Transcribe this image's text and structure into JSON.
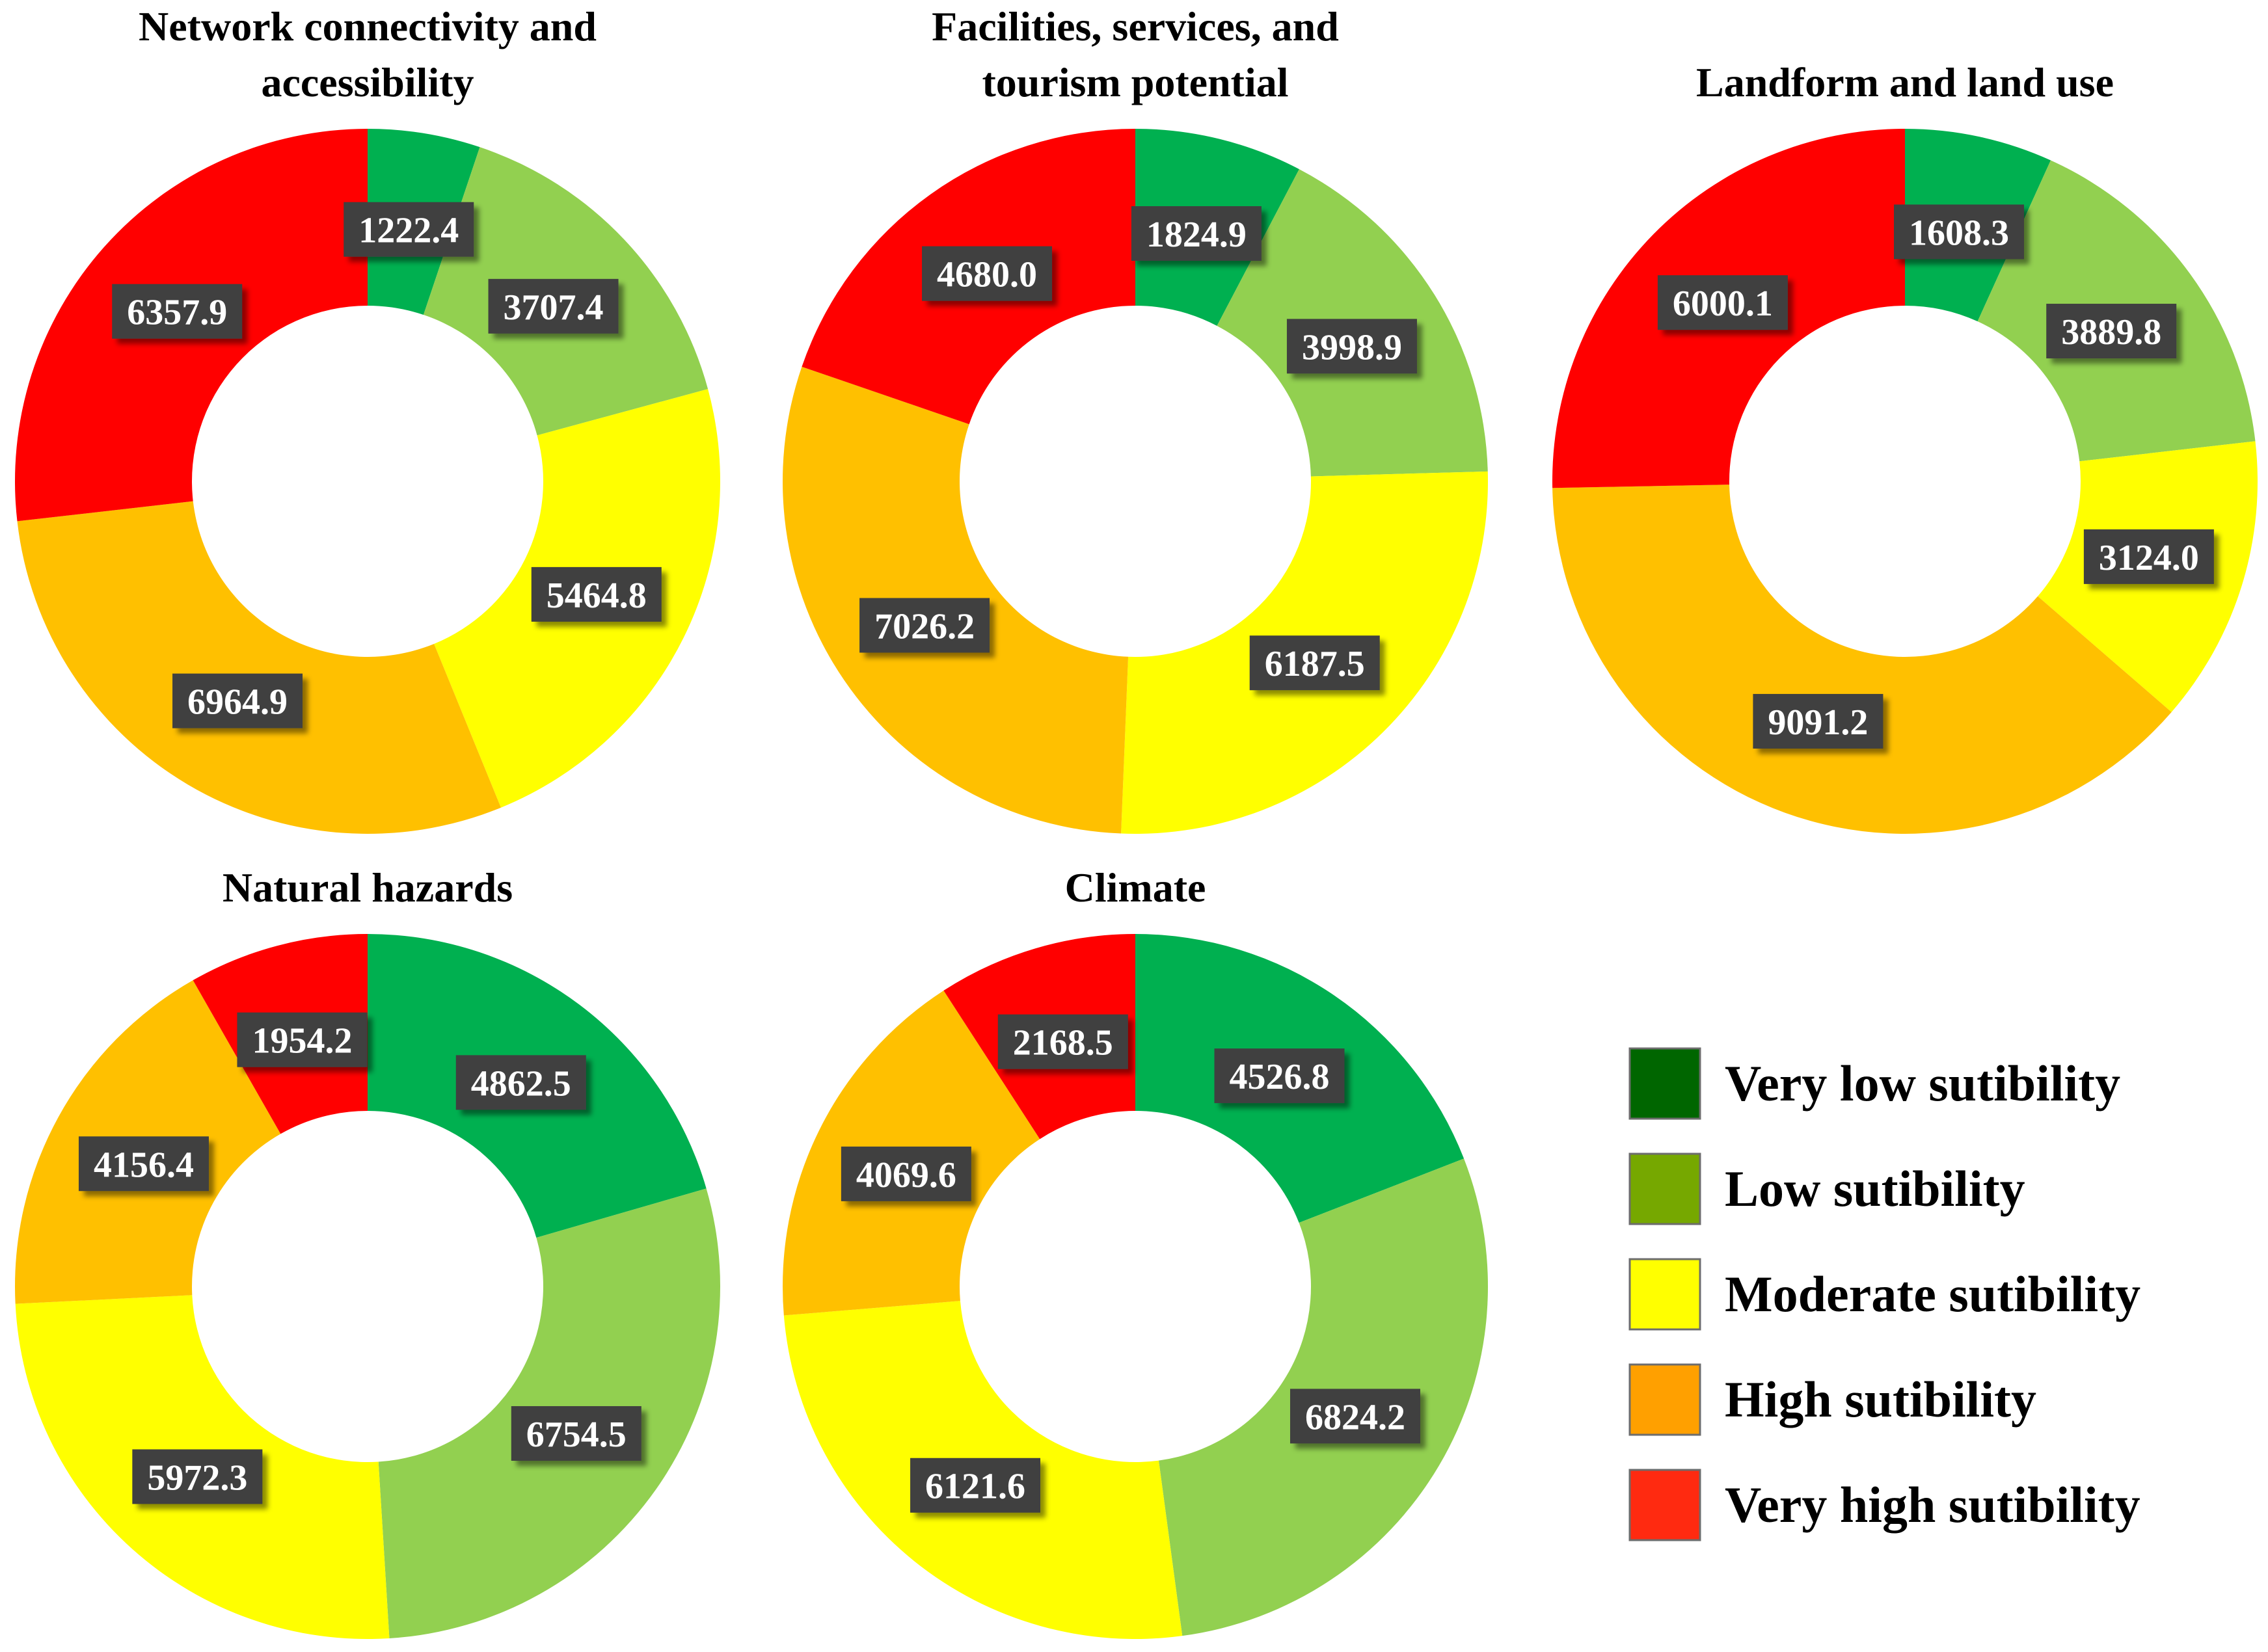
{
  "colors": {
    "very_low": "#00B050",
    "low": "#92D050",
    "moderate": "#FFFF00",
    "high": "#FFC000",
    "very_high": "#FF0000",
    "label_box": "#404040"
  },
  "legend": {
    "items": [
      {
        "label": "Very low sutibility",
        "color": "#006600"
      },
      {
        "label": "Low sutibility",
        "color": "#76A800"
      },
      {
        "label": "Moderate sutibility",
        "color": "#FFFF00"
      },
      {
        "label": "High sutibility",
        "color": "#FFA000"
      },
      {
        "label": "Very high sutibility",
        "color": "#FF2A10"
      }
    ]
  },
  "chart_data": [
    {
      "type": "pie",
      "title": [
        "Network connectivity and",
        "accessibility"
      ],
      "categories": [
        "Very low sutibility",
        "Low sutibility",
        "Moderate sutibility",
        "High sutibility",
        "Very high sutibility"
      ],
      "values": [
        1222.4,
        3707.4,
        5464.8,
        6964.9,
        6357.9
      ],
      "labels": [
        "1222.4",
        "3707.4",
        "5464.8",
        "6964.9",
        "6357.9"
      ]
    },
    {
      "type": "pie",
      "title": [
        "Facilities, services, and",
        "tourism potential"
      ],
      "categories": [
        "Very low sutibility",
        "Low sutibility",
        "Moderate sutibility",
        "High sutibility",
        "Very high sutibility"
      ],
      "values": [
        1824.9,
        3998.9,
        6187.5,
        7026.2,
        4680.0
      ],
      "labels": [
        "1824.9",
        "3998.9",
        "6187.5",
        "7026.2",
        "4680.0"
      ]
    },
    {
      "type": "pie",
      "title": [
        "Landform and land use"
      ],
      "categories": [
        "Very low sutibility",
        "Low sutibility",
        "Moderate sutibility",
        "High sutibility",
        "Very high sutibility"
      ],
      "values": [
        1608.3,
        3889.8,
        3124.0,
        9091.2,
        6000.1
      ],
      "labels": [
        "1608.3",
        "3889.8",
        "3124.0",
        "9091.2",
        "6000.1"
      ]
    },
    {
      "type": "pie",
      "title": [
        "Natural hazards"
      ],
      "categories": [
        "Very low sutibility",
        "Low sutibility",
        "Moderate sutibility",
        "High sutibility",
        "Very high sutibility"
      ],
      "values": [
        4862.5,
        6754.5,
        5972.3,
        4156.4,
        1954.2
      ],
      "labels": [
        "4862.5",
        "6754.5",
        "5972.3",
        "4156.4",
        "1954.2"
      ]
    },
    {
      "type": "pie",
      "title": [
        "Climate"
      ],
      "categories": [
        "Very low sutibility",
        "Low sutibility",
        "Moderate sutibility",
        "High sutibility",
        "Very high sutibility"
      ],
      "values": [
        4526.8,
        6824.2,
        6121.6,
        4069.6,
        2168.5
      ],
      "labels": [
        "4526.8",
        "6824.2",
        "6121.6",
        "4069.6",
        "2168.5"
      ]
    }
  ]
}
